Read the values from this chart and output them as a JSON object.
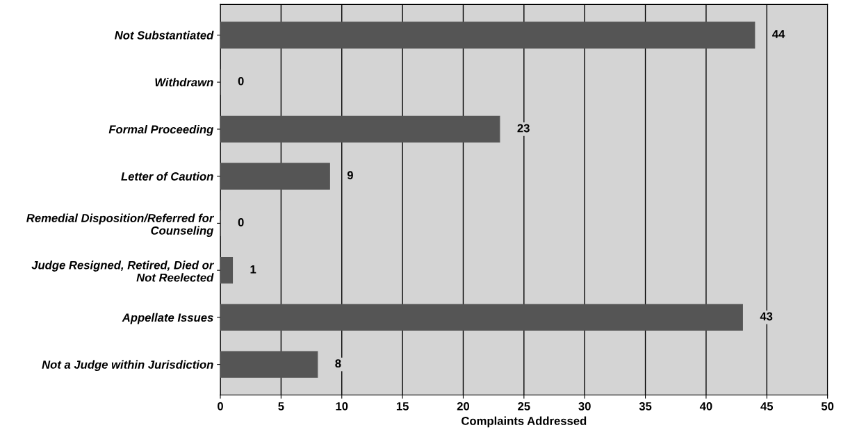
{
  "chart_data": {
    "type": "bar",
    "orientation": "horizontal",
    "xlabel": "Complaints Addressed",
    "categories": [
      "Not Substantiated",
      "Withdrawn",
      "Formal Proceeding",
      "Letter of Caution",
      "Remedial Disposition/Referred for\nCounseling",
      "Judge Resigned, Retired, Died or\nNot Reelected",
      "Appellate Issues",
      "Not a Judge within Jurisdiction"
    ],
    "values": [
      44,
      0,
      23,
      9,
      0,
      1,
      43,
      8
    ],
    "color": "#555555",
    "xlim": [
      0,
      50
    ],
    "xticks": [
      0,
      5,
      10,
      15,
      20,
      25,
      30,
      35,
      40,
      45,
      50
    ],
    "grid": "x",
    "data_labels": true
  }
}
